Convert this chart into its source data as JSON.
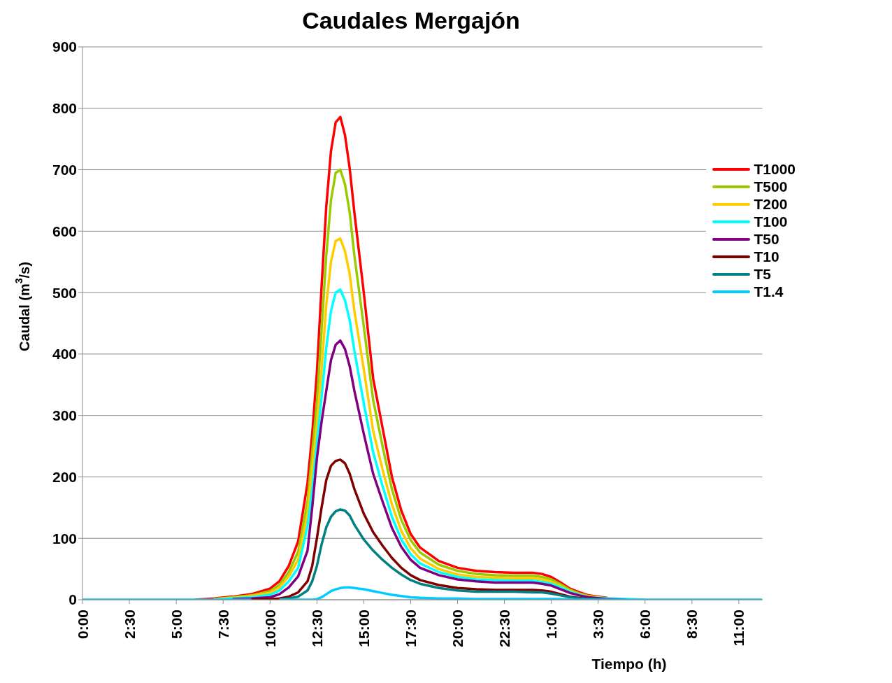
{
  "chart_data": {
    "type": "line",
    "title": "Caudales Mergajón",
    "xlabel": "Tiempo (h)",
    "ylabel": "Caudal (m$^{3}$/s)",
    "x": [
      "2000-01-01T00:00",
      "2000-01-01T06:00",
      "2000-01-01T07:00",
      "2000-01-01T08:00",
      "2000-01-01T09:00",
      "2000-01-01T10:00",
      "2000-01-01T10:30",
      "2000-01-01T11:00",
      "2000-01-01T11:30",
      "2000-01-01T12:00",
      "2000-01-01T12:15",
      "2000-01-01T12:30",
      "2000-01-01T12:45",
      "2000-01-01T13:00",
      "2000-01-01T13:15",
      "2000-01-01T13:30",
      "2000-01-01T13:45",
      "2000-01-01T14:00",
      "2000-01-01T14:15",
      "2000-01-01T14:30",
      "2000-01-01T15:00",
      "2000-01-01T15:30",
      "2000-01-01T16:00",
      "2000-01-01T16:30",
      "2000-01-01T17:00",
      "2000-01-01T17:30",
      "2000-01-01T18:00",
      "2000-01-01T19:00",
      "2000-01-01T20:00",
      "2000-01-01T21:00",
      "2000-01-01T22:00",
      "2000-01-01T23:00",
      "2000-01-02T00:00",
      "2000-01-02T00:30",
      "2000-01-02T01:00",
      "2000-01-02T01:30",
      "2000-01-02T02:00",
      "2000-01-02T02:30",
      "2000-01-02T03:00",
      "2000-01-02T04:00",
      "2000-01-02T05:00",
      "2000-01-02T06:00",
      "2000-01-02T12:15"
    ],
    "series": [
      {
        "name": "T1000",
        "color": "#ff0000",
        "values": [
          null,
          0,
          2,
          5,
          9,
          18,
          30,
          55,
          95,
          190,
          270,
          370,
          510,
          640,
          730,
          777,
          786,
          756,
          702,
          630,
          500,
          360,
          280,
          200,
          145,
          107,
          85,
          63,
          52,
          47,
          45,
          44,
          44,
          42,
          37,
          28,
          18,
          12,
          7,
          3,
          null,
          null,
          null
        ]
      },
      {
        "name": "T500",
        "color": "#99cc00",
        "values": [
          null,
          null,
          1,
          4,
          7,
          14,
          24,
          45,
          78,
          160,
          240,
          320,
          440,
          560,
          650,
          695,
          700,
          676,
          630,
          560,
          445,
          325,
          250,
          180,
          130,
          97,
          77,
          57,
          47,
          42,
          40,
          39,
          39,
          37,
          33,
          25,
          16,
          10,
          6,
          2,
          null,
          null,
          null
        ]
      },
      {
        "name": "T200",
        "color": "#ffcc00",
        "values": [
          null,
          null,
          1,
          3,
          6,
          11,
          20,
          38,
          65,
          140,
          215,
          285,
          375,
          480,
          550,
          584,
          588,
          567,
          530,
          470,
          375,
          275,
          212,
          155,
          112,
          84,
          67,
          50,
          41,
          37,
          36,
          35,
          35,
          33,
          29,
          22,
          14,
          9,
          5,
          2,
          null,
          null,
          null
        ]
      },
      {
        "name": "T100",
        "color": "#00ffff",
        "values": [
          null,
          null,
          0,
          2,
          4,
          8,
          15,
          30,
          52,
          120,
          180,
          255,
          330,
          410,
          470,
          500,
          505,
          487,
          455,
          405,
          320,
          240,
          185,
          135,
          98,
          74,
          59,
          45,
          37,
          33,
          32,
          31,
          31,
          29,
          26,
          20,
          13,
          8,
          4,
          2,
          1,
          0,
          null
        ]
      },
      {
        "name": "T50",
        "color": "#800080",
        "values": [
          null,
          null,
          null,
          1,
          2,
          4,
          9,
          20,
          38,
          80,
          150,
          230,
          290,
          340,
          390,
          415,
          422,
          408,
          380,
          340,
          270,
          205,
          160,
          117,
          86,
          65,
          52,
          40,
          33,
          30,
          28,
          28,
          28,
          26,
          23,
          17,
          11,
          7,
          4,
          1,
          0,
          null,
          null
        ]
      },
      {
        "name": "T10",
        "color": "#800000",
        "values": [
          null,
          null,
          null,
          null,
          0,
          1,
          2,
          5,
          12,
          30,
          55,
          100,
          150,
          195,
          218,
          226,
          228,
          222,
          205,
          180,
          140,
          110,
          88,
          68,
          52,
          40,
          32,
          24,
          19,
          17,
          16,
          16,
          16,
          15,
          13,
          9,
          5,
          3,
          1,
          0,
          null,
          null,
          null
        ]
      },
      {
        "name": "T5",
        "color": "#008080",
        "values": [
          null,
          null,
          null,
          null,
          null,
          null,
          0,
          2,
          5,
          15,
          30,
          55,
          90,
          118,
          135,
          144,
          147,
          145,
          137,
          122,
          98,
          80,
          65,
          52,
          41,
          32,
          26,
          19,
          15,
          13,
          13,
          13,
          12,
          12,
          10,
          7,
          4,
          2,
          1,
          0,
          null,
          null,
          null
        ]
      },
      {
        "name": "T1.4",
        "color": "#00ccff",
        "values": [
          0,
          0,
          0,
          0,
          0,
          null,
          0,
          0,
          0,
          0,
          0,
          1,
          4,
          9,
          14,
          17,
          19,
          20,
          20,
          19,
          17,
          14,
          11,
          8,
          6,
          4,
          3,
          2,
          2,
          1,
          1,
          1,
          1,
          1,
          1,
          1,
          0,
          0,
          0,
          0,
          0,
          0,
          0
        ]
      }
    ],
    "xlim": [
      "2000-01-01T00:00",
      "2000-01-02T12:15"
    ],
    "xticks": [
      {
        "value": "2000-01-01T00:00",
        "label": "0:00"
      },
      {
        "value": "2000-01-01T02:30",
        "label": "2:30"
      },
      {
        "value": "2000-01-01T05:00",
        "label": "5:00"
      },
      {
        "value": "2000-01-01T07:30",
        "label": "7:30"
      },
      {
        "value": "2000-01-01T10:00",
        "label": "10:00"
      },
      {
        "value": "2000-01-01T12:30",
        "label": "12:30"
      },
      {
        "value": "2000-01-01T15:00",
        "label": "15:00"
      },
      {
        "value": "2000-01-01T17:30",
        "label": "17:30"
      },
      {
        "value": "2000-01-01T20:00",
        "label": "20:00"
      },
      {
        "value": "2000-01-01T22:30",
        "label": "22:30"
      },
      {
        "value": "2000-01-02T01:00",
        "label": "1:00"
      },
      {
        "value": "2000-01-02T03:30",
        "label": "3:30"
      },
      {
        "value": "2000-01-02T06:00",
        "label": "6:00"
      },
      {
        "value": "2000-01-02T08:30",
        "label": "8:30"
      },
      {
        "value": "2000-01-02T11:00",
        "label": "11:00"
      }
    ],
    "ylim": [
      0,
      900
    ],
    "yticks": [
      0,
      100,
      200,
      300,
      400,
      500,
      600,
      700,
      800,
      900
    ],
    "grid": "y",
    "legend": "top right",
    "marker": "none",
    "line_style": "solid"
  }
}
